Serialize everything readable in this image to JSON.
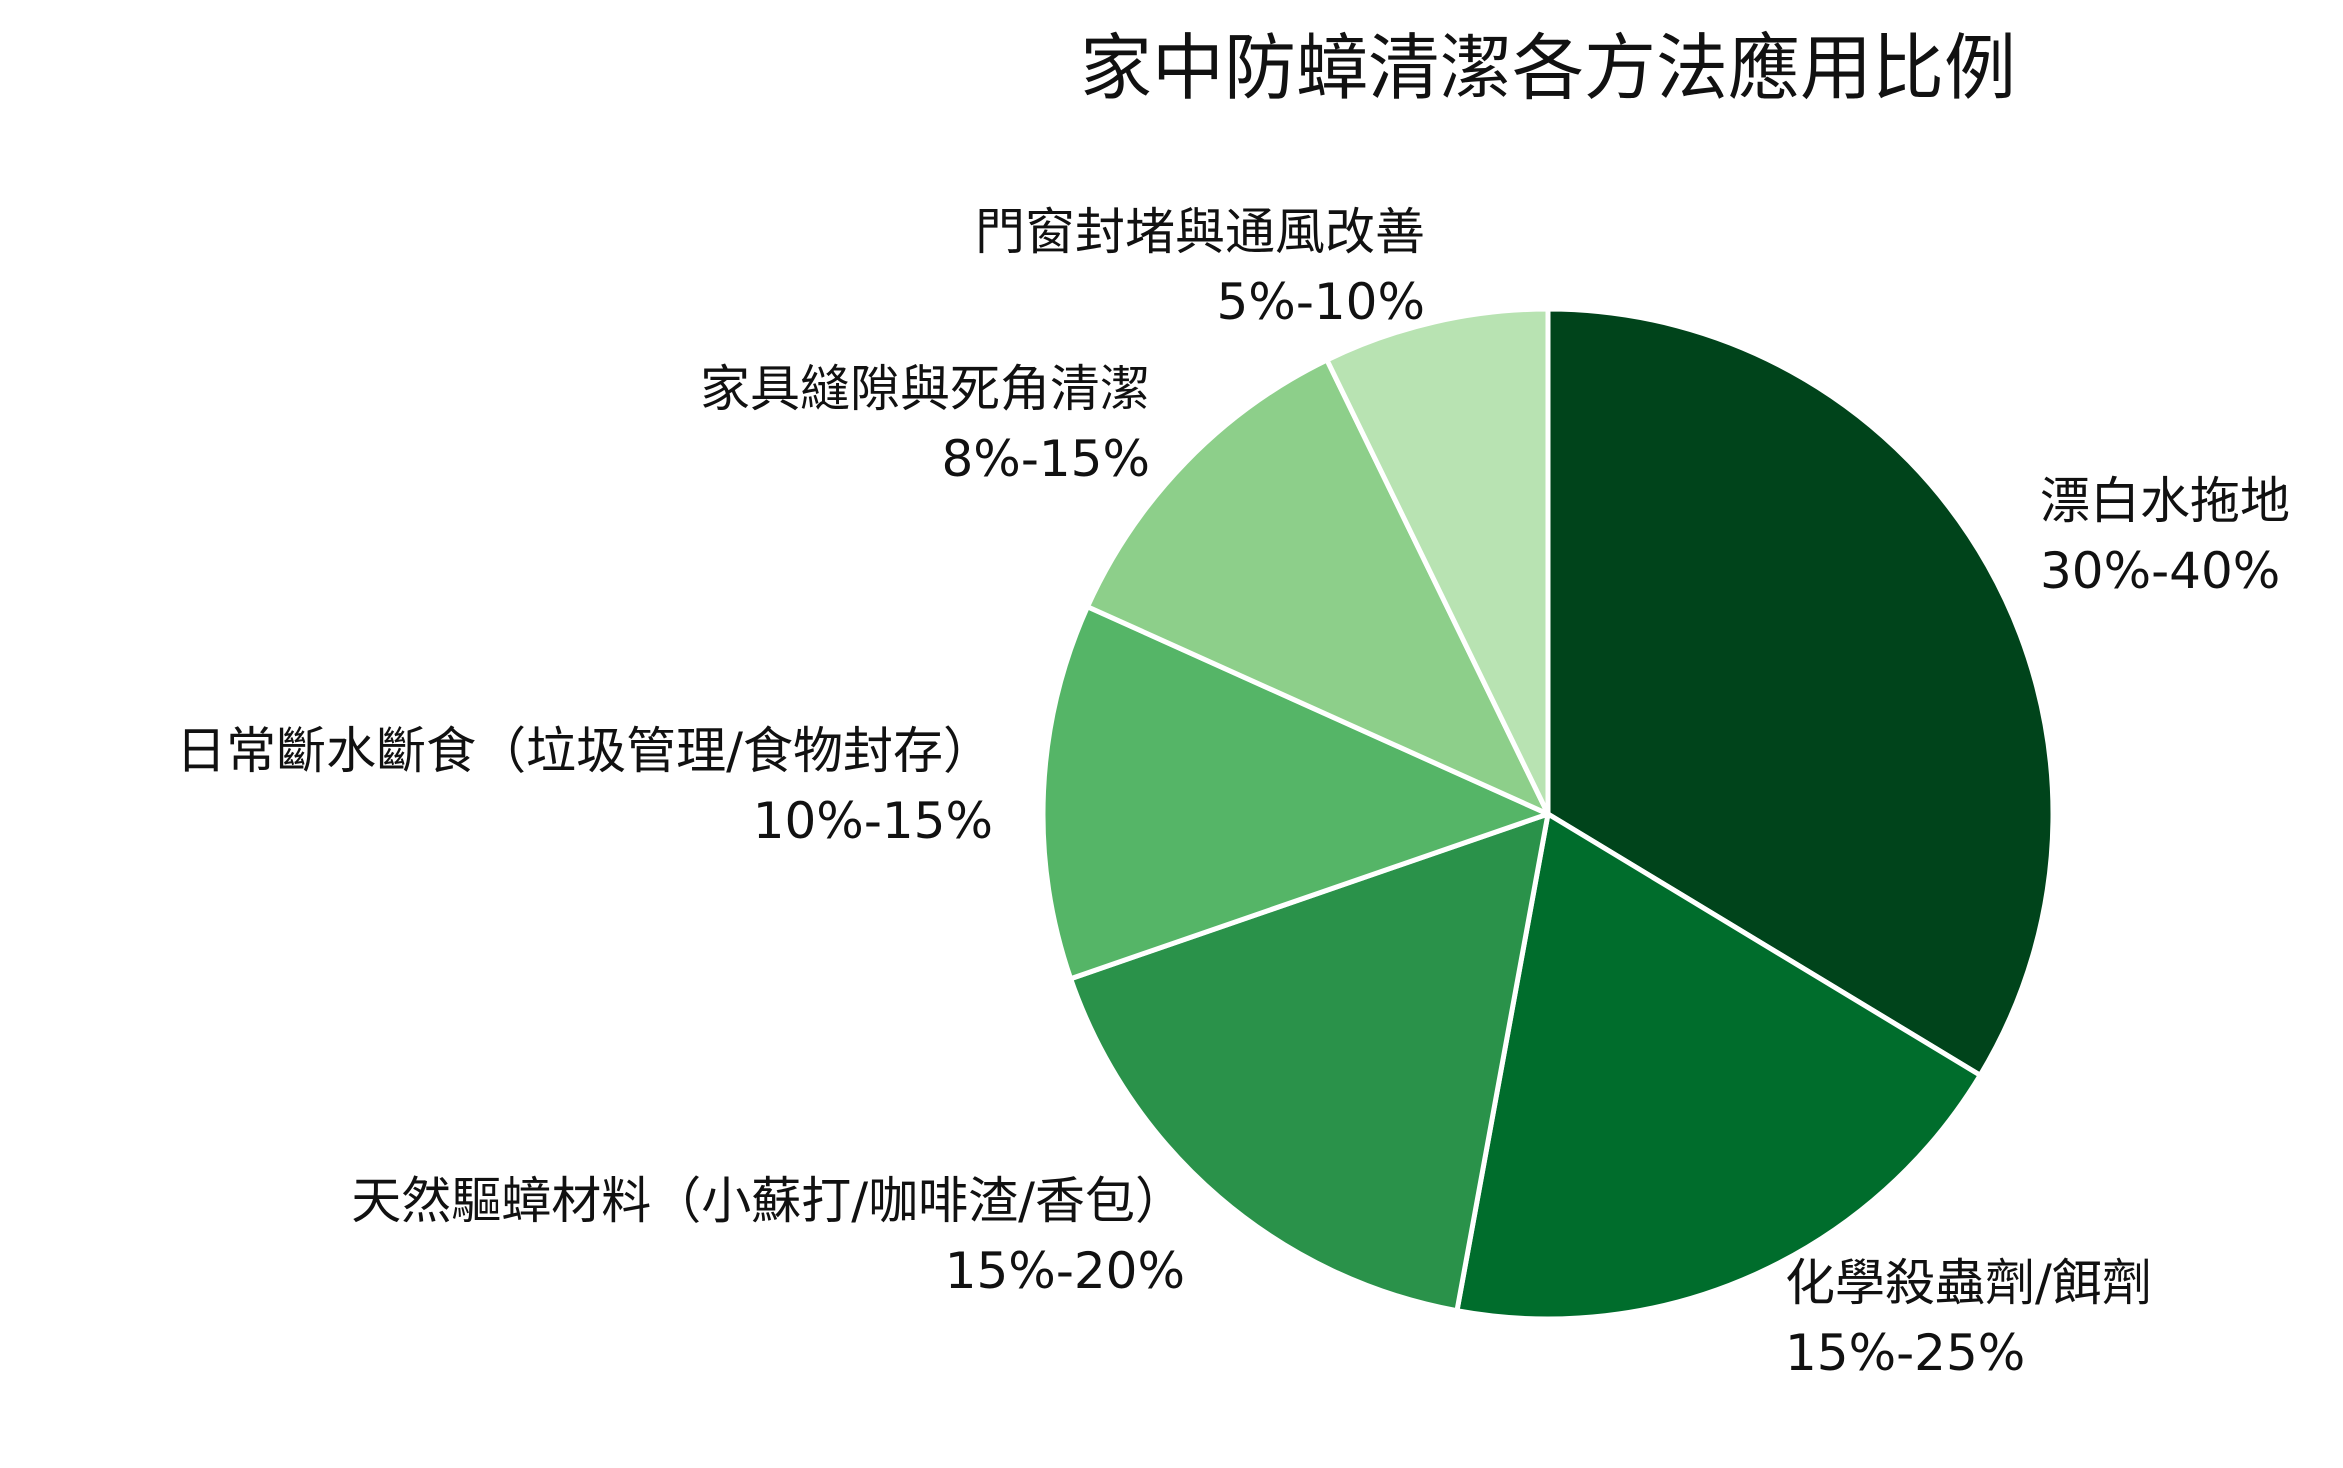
{
  "chart_data": {
    "type": "pie",
    "title": "家中防蟑清潔各方法應用比例",
    "start_angle_deg": 0,
    "direction": "clockwise",
    "slices": [
      {
        "label": "漂白水拖地",
        "range_label": "30%-40%",
        "value": 35,
        "color": "#00441b"
      },
      {
        "label": "化學殺蟲劑/餌劑",
        "range_label": "15%-25%",
        "value": 20,
        "color": "#006d2c"
      },
      {
        "label": "天然驅蟑材料（小蘇打/咖啡渣/香包）",
        "range_label": "15%-20%",
        "value": 17.5,
        "color": "#2a924a"
      },
      {
        "label": "日常斷水斷食（垃圾管理/食物封存）",
        "range_label": "10%-15%",
        "value": 12.5,
        "color": "#55b567"
      },
      {
        "label": "家具縫隙與死角清潔",
        "range_label": "8%-15%",
        "value": 11.5,
        "color": "#8dcf8a"
      },
      {
        "label": "門窗封堵與通風改善",
        "range_label": "5%-10%",
        "value": 7.5,
        "color": "#b8e3b2"
      }
    ]
  }
}
